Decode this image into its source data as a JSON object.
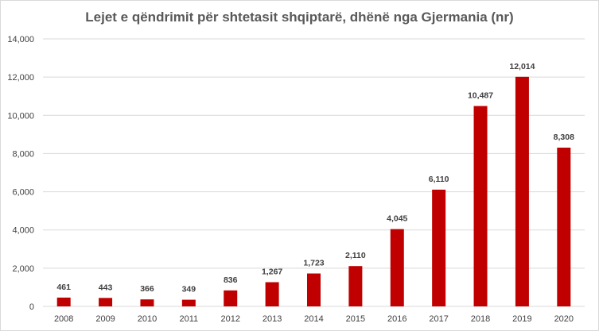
{
  "chart_data": {
    "type": "bar",
    "title": "Lejet e qëndrimit për shtetasit shqiptarë, dhënë nga Gjermania (nr)",
    "categories": [
      "2008",
      "2009",
      "2010",
      "2011",
      "2012",
      "2013",
      "2014",
      "2015",
      "2016",
      "2017",
      "2018",
      "2019",
      "2020"
    ],
    "values": [
      461,
      443,
      366,
      349,
      836,
      1267,
      1723,
      2110,
      4045,
      6110,
      10487,
      12014,
      8308
    ],
    "data_labels": [
      "461",
      "443",
      "366",
      "349",
      "836",
      "1,267",
      "1,723",
      "2,110",
      "4,045",
      "6,110",
      "10,487",
      "12,014",
      "8,308"
    ],
    "y_ticks": [
      0,
      2000,
      4000,
      6000,
      8000,
      10000,
      12000,
      14000
    ],
    "y_tick_labels": [
      "0",
      "2,000",
      "4,000",
      "6,000",
      "8,000",
      "10,000",
      "12,000",
      "14,000"
    ],
    "ylim": [
      0,
      14000
    ],
    "xlabel": "",
    "ylabel": "",
    "grid": true,
    "legend": "none",
    "bar_color": "#c00000",
    "grid_color": "#d9d9d9"
  }
}
